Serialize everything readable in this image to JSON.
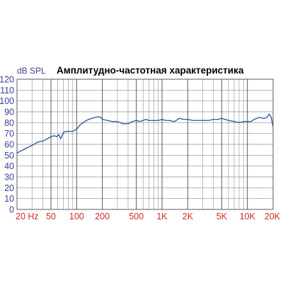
{
  "chart_data": {
    "type": "line",
    "title": "Амплитудно-частотная характеристика",
    "ylabel": "dB SPL",
    "xlabel": "",
    "x_scale": "log",
    "xlim": [
      20,
      20000
    ],
    "ylim": [
      0,
      120
    ],
    "grid": true,
    "y_ticks": [
      0,
      10,
      20,
      30,
      40,
      50,
      60,
      70,
      80,
      90,
      100,
      110,
      120
    ],
    "x_ticks": [
      {
        "value": 20,
        "label": "20 Hz"
      },
      {
        "value": 50,
        "label": "50"
      },
      {
        "value": 100,
        "label": "100"
      },
      {
        "value": 200,
        "label": "200"
      },
      {
        "value": 500,
        "label": "500"
      },
      {
        "value": 1000,
        "label": "1K"
      },
      {
        "value": 2000,
        "label": "2K"
      },
      {
        "value": 5000,
        "label": "5K"
      },
      {
        "value": 10000,
        "label": "10K"
      },
      {
        "value": 20000,
        "label": "20K"
      }
    ],
    "series": [
      {
        "x": [
          20,
          25,
          30,
          35,
          40,
          45,
          50,
          55,
          58,
          62,
          65,
          70,
          75,
          80,
          90,
          100,
          105,
          110,
          120,
          130,
          150,
          170,
          180,
          190,
          200,
          230,
          260,
          300,
          350,
          400,
          450,
          500,
          550,
          600,
          650,
          700,
          800,
          900,
          1000,
          1100,
          1200,
          1400,
          1600,
          1800,
          2000,
          2300,
          2600,
          3000,
          3500,
          4000,
          4500,
          5000,
          5500,
          6000,
          7000,
          8000,
          9000,
          10000,
          11000,
          12000,
          13000,
          14000,
          15000,
          16000,
          17000,
          18000,
          19000,
          20000
        ],
        "y": [
          52,
          56,
          59,
          62,
          63,
          65,
          67,
          68,
          67,
          69,
          65,
          71,
          72,
          72,
          72,
          74,
          76,
          78,
          80,
          82,
          84,
          85,
          85.5,
          85,
          83,
          82,
          81,
          81,
          79,
          79,
          81,
          82,
          81,
          82,
          83,
          82,
          82,
          82,
          83,
          82,
          82,
          81,
          84,
          83,
          83,
          82,
          82,
          82,
          82,
          83,
          83,
          84,
          83,
          82,
          81,
          80,
          81,
          81,
          81,
          83,
          84,
          85,
          84,
          84,
          85,
          88,
          85,
          76
        ]
      }
    ]
  }
}
